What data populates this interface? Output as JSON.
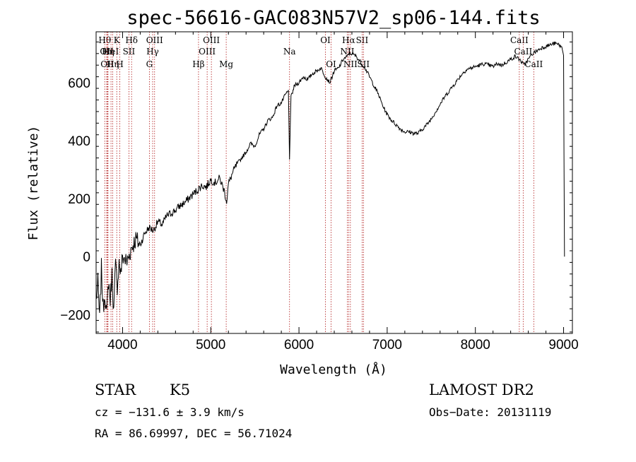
{
  "chart_data": {
    "type": "line",
    "title": "spec-56616-GAC083N57V2_sp06-144.fits",
    "xlabel": "Wavelength (Å)",
    "ylabel": "Flux (relative)",
    "xlim": [
      3700,
      9100
    ],
    "ylim": [
      -265,
      775
    ],
    "xticks": [
      4000,
      5000,
      6000,
      7000,
      8000,
      9000
    ],
    "yticks": [
      -200,
      0,
      200,
      400,
      600
    ],
    "series": [
      {
        "x": [
          3700,
          3720,
          3740,
          3760,
          3780,
          3800,
          3820,
          3840,
          3860,
          3880,
          3900,
          3920,
          3940,
          3960,
          3980,
          4000,
          4050,
          4100,
          4150,
          4200,
          4250,
          4300,
          4350,
          4400,
          4450,
          4500,
          4550,
          4600,
          4650,
          4700,
          4750,
          4800,
          4850,
          4900,
          4950,
          5000,
          5050,
          5100,
          5150,
          5180,
          5200,
          5250,
          5300,
          5350,
          5400,
          5450,
          5500,
          5550,
          5600,
          5650,
          5700,
          5750,
          5800,
          5850,
          5880,
          5893,
          5910,
          5950,
          6000,
          6050,
          6100,
          6150,
          6200,
          6250,
          6300,
          6350,
          6400,
          6450,
          6500,
          6550,
          6563,
          6600,
          6650,
          6700,
          6750,
          6800,
          6850,
          6900,
          6950,
          7000,
          7050,
          7100,
          7150,
          7200,
          7250,
          7300,
          7350,
          7400,
          7450,
          7500,
          7550,
          7600,
          7650,
          7700,
          7750,
          7800,
          7850,
          7900,
          7950,
          8000,
          8050,
          8100,
          8150,
          8200,
          8250,
          8300,
          8350,
          8400,
          8450,
          8500,
          8550,
          8600,
          8650,
          8700,
          8750,
          8800,
          8850,
          8900,
          8950,
          8980,
          9000,
          9010
        ],
        "y": [
          -150,
          -90,
          -220,
          -40,
          -180,
          -120,
          -210,
          -80,
          -150,
          -60,
          -190,
          -30,
          -100,
          -20,
          -60,
          0,
          -20,
          30,
          60,
          40,
          80,
          100,
          90,
          120,
          110,
          140,
          150,
          160,
          175,
          185,
          200,
          215,
          230,
          245,
          240,
          265,
          255,
          270,
          230,
          190,
          250,
          290,
          320,
          340,
          360,
          390,
          380,
          420,
          440,
          470,
          480,
          520,
          530,
          560,
          570,
          340,
          550,
          590,
          600,
          620,
          610,
          630,
          640,
          650,
          620,
          600,
          640,
          650,
          680,
          690,
          700,
          700,
          690,
          670,
          650,
          620,
          590,
          560,
          520,
          490,
          470,
          455,
          440,
          430,
          430,
          425,
          425,
          440,
          455,
          475,
          500,
          525,
          550,
          570,
          590,
          610,
          630,
          645,
          650,
          655,
          660,
          665,
          660,
          655,
          665,
          660,
          670,
          680,
          690,
          680,
          660,
          680,
          700,
          710,
          720,
          725,
          730,
          735,
          730,
          720,
          700,
          0
        ]
      }
    ],
    "line_markers": [
      {
        "wl": 3798,
        "row": 1,
        "label": "Hθ"
      },
      {
        "wl": 3820,
        "row": 2,
        "label": "OII"
      },
      {
        "wl": 3828,
        "row": 3,
        "label": "OII"
      },
      {
        "wl": 3835,
        "row": 2,
        "label": "Hη"
      },
      {
        "wl": 3869,
        "row": 2,
        "label": "HeI"
      },
      {
        "wl": 3889,
        "row": 3,
        "label": "Hη"
      },
      {
        "wl": 3934,
        "row": 1,
        "label": "K"
      },
      {
        "wl": 3969,
        "row": 3,
        "label": "H"
      },
      {
        "wl": 4072,
        "row": 2,
        "label": "SII"
      },
      {
        "wl": 4102,
        "row": 1,
        "label": "Hδ"
      },
      {
        "wl": 4304,
        "row": 3,
        "label": "G"
      },
      {
        "wl": 4341,
        "row": 2,
        "label": "Hγ"
      },
      {
        "wl": 4363,
        "row": 1,
        "label": "OIII"
      },
      {
        "wl": 4861,
        "row": 3,
        "label": "Hβ"
      },
      {
        "wl": 4959,
        "row": 2,
        "label": "OIII"
      },
      {
        "wl": 5007,
        "row": 1,
        "label": "OIII"
      },
      {
        "wl": 5175,
        "row": 3,
        "label": "Mg"
      },
      {
        "wl": 5893,
        "row": 2,
        "label": "Na"
      },
      {
        "wl": 6300,
        "row": 1,
        "label": "OI"
      },
      {
        "wl": 6364,
        "row": 3,
        "label": "OI"
      },
      {
        "wl": 6548,
        "row": 2,
        "label": "NII"
      },
      {
        "wl": 6563,
        "row": 1,
        "label": "Hα"
      },
      {
        "wl": 6583,
        "row": 3,
        "label": "NII"
      },
      {
        "wl": 6716,
        "row": 1,
        "label": "SII"
      },
      {
        "wl": 6731,
        "row": 3,
        "label": "SII"
      },
      {
        "wl": 8498,
        "row": 1,
        "label": "CaII"
      },
      {
        "wl": 8542,
        "row": 2,
        "label": "CaII"
      },
      {
        "wl": 8662,
        "row": 3,
        "label": "CaII"
      }
    ]
  },
  "info": {
    "class": "STAR",
    "subclass": "K5",
    "survey": "LAMOST DR2",
    "cz": "cz = −131.6 ± 3.9 km/s",
    "obs_date": "Obs−Date: 20131119",
    "coords": "RA =  86.69997, DEC =  56.71024"
  }
}
